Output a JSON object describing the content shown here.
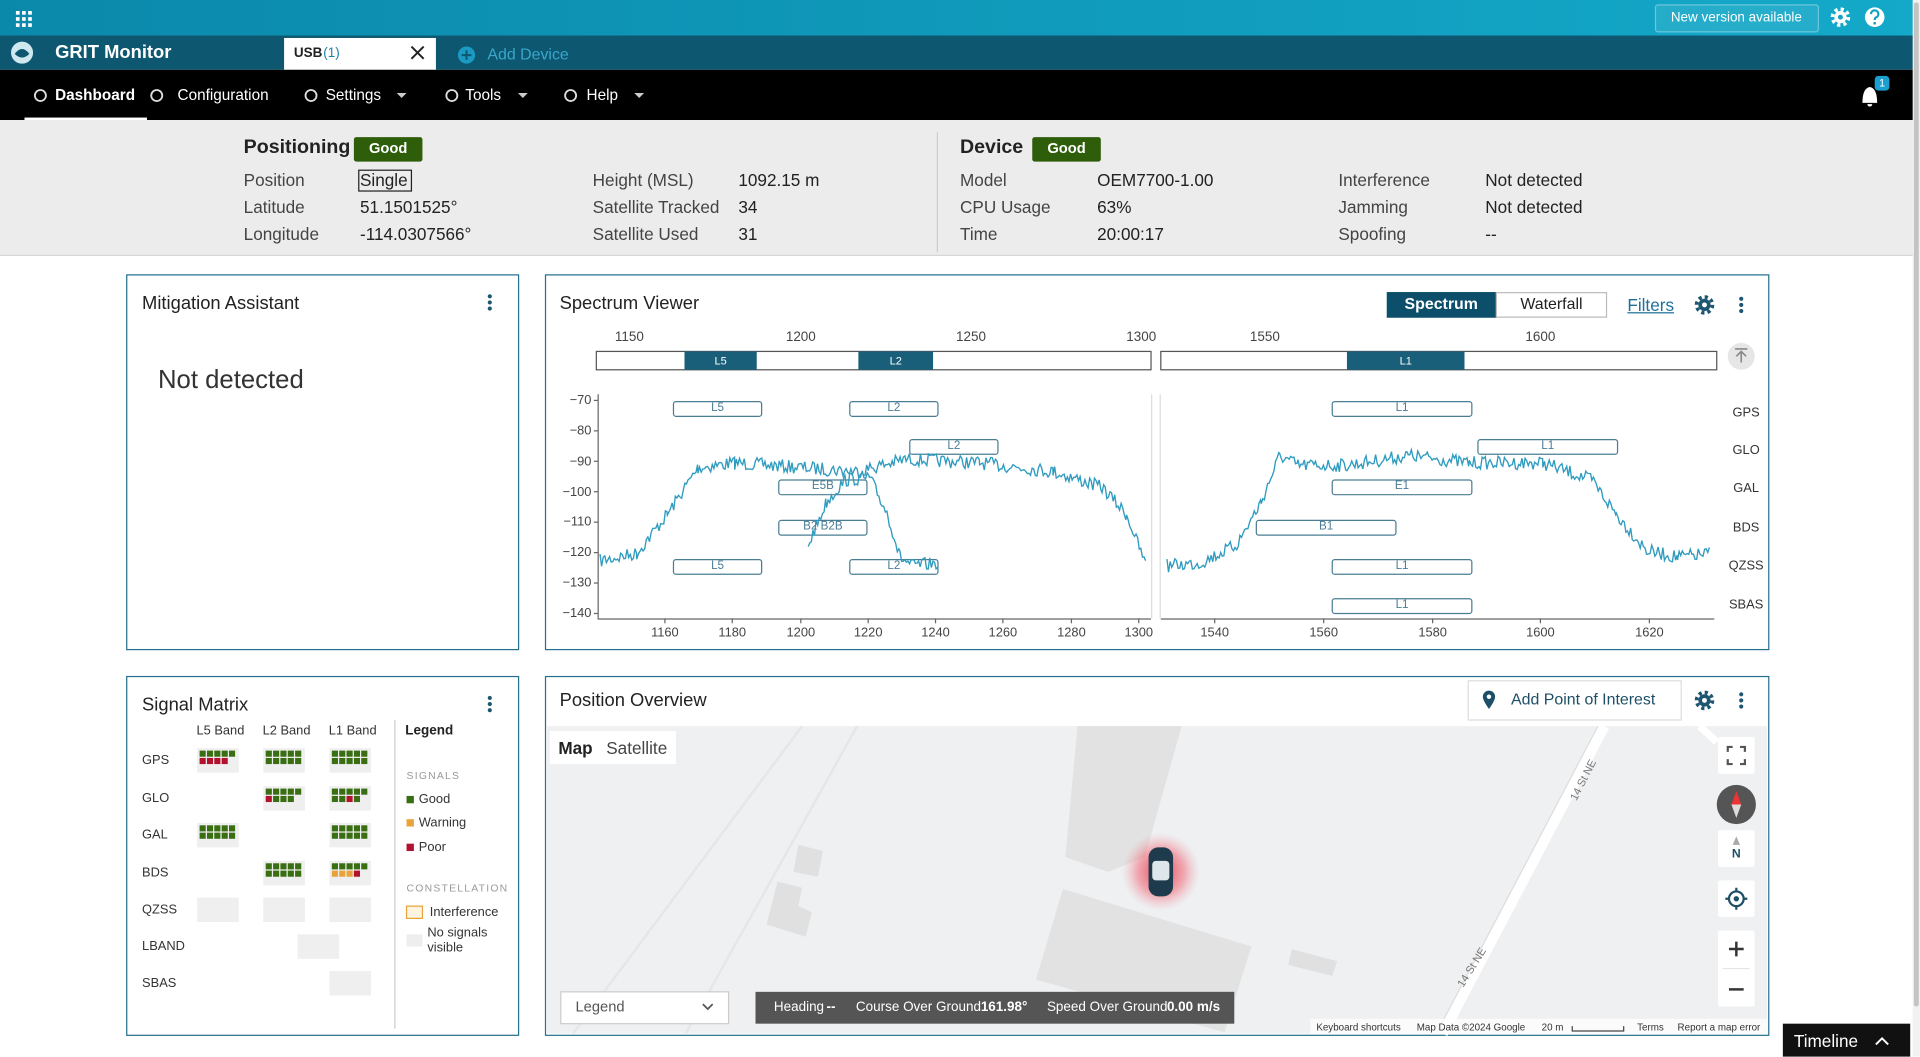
{
  "header": {
    "new_version": "New version available"
  },
  "tabs": {
    "app_title": "GRIT Monitor",
    "device_tab": "USB",
    "device_count": "(1)",
    "add_device": "Add Device"
  },
  "nav": {
    "items": [
      "Dashboard",
      "Configuration",
      "Settings",
      "Tools",
      "Help"
    ],
    "notification_count": "1"
  },
  "status": {
    "positioning": {
      "title": "Positioning",
      "badge": "Good",
      "fields": [
        {
          "label": "Position",
          "value": "Single"
        },
        {
          "label": "Latitude",
          "value": "51.1501525°"
        },
        {
          "label": "Longitude",
          "value": "-114.0307566°"
        },
        {
          "label": "Height (MSL)",
          "value": "1092.15 m"
        },
        {
          "label": "Satellite Tracked",
          "value": "34"
        },
        {
          "label": "Satellite Used",
          "value": "31"
        }
      ]
    },
    "device": {
      "title": "Device",
      "badge": "Good",
      "fields": [
        {
          "label": "Model",
          "value": "OEM7700-1.00"
        },
        {
          "label": "CPU Usage",
          "value": "63%"
        },
        {
          "label": "Time",
          "value": "20:00:17"
        },
        {
          "label": "Interference",
          "value": "Not detected"
        },
        {
          "label": "Jamming",
          "value": "Not detected"
        },
        {
          "label": "Spoofing",
          "value": "--"
        }
      ]
    }
  },
  "mitigation": {
    "title": "Mitigation Assistant",
    "message": "Not detected"
  },
  "spectrum": {
    "title": "Spectrum Viewer",
    "modes": [
      "Spectrum",
      "Waterfall"
    ],
    "filters": "Filters",
    "overview_ticks_left": [
      "1150",
      "1200",
      "1250",
      "1300"
    ],
    "overview_ticks_right": [
      "1550",
      "1600"
    ],
    "overview_bands": [
      "L5",
      "L2",
      "L1"
    ],
    "y_ticks": [
      "−70",
      "−80",
      "−90",
      "−100",
      "−110",
      "−120",
      "−130",
      "−140"
    ],
    "x_ticks_left": [
      "1160",
      "1180",
      "1200",
      "1220",
      "1240",
      "1260",
      "1280",
      "1300"
    ],
    "x_ticks_right": [
      "1540",
      "1560",
      "1580",
      "1600",
      "1620"
    ],
    "constellations": [
      "GPS",
      "GLO",
      "GAL",
      "BDS",
      "QZSS",
      "SBAS"
    ],
    "signals": [
      "L5",
      "L2",
      "L2",
      "E5B",
      "B2 B2B",
      "L5",
      "L2",
      "L1",
      "L1",
      "E1",
      "B1",
      "L1",
      "L1"
    ]
  },
  "signal_matrix": {
    "title": "Signal Matrix",
    "bands": [
      "L5 Band",
      "L2 Band",
      "L1 Band"
    ],
    "constellations": [
      "GPS",
      "GLO",
      "GAL",
      "BDS",
      "QZSS",
      "LBAND",
      "SBAS"
    ],
    "legend": {
      "title": "Legend",
      "signals_heading": "SIGNALS",
      "signals": [
        "Good",
        "Warning",
        "Poor"
      ],
      "constellation_heading": "CONSTELLATION",
      "constellation": [
        "Interference",
        "No signals visible"
      ]
    }
  },
  "position": {
    "title": "Position Overview",
    "add_poi": "Add Point of Interest",
    "map_types": [
      "Map",
      "Satellite"
    ],
    "legend": "Legend",
    "heading_label": "Heading",
    "heading_value": "--",
    "course_label": "Course Over Ground",
    "course_value": "161.98°",
    "speed_label": "Speed Over Ground",
    "speed_value": "0.00 m/s",
    "streets": [
      "14 St NE",
      "14 St NE"
    ],
    "compass": "N",
    "attribution": [
      "Keyboard shortcuts",
      "Map Data ©2024 Google",
      "20 m",
      "Terms",
      "Report a map error"
    ]
  },
  "timeline": "Timeline"
}
